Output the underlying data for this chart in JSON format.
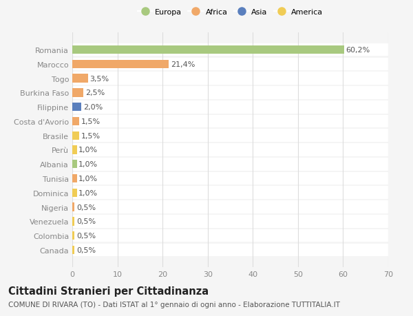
{
  "countries": [
    "Romania",
    "Marocco",
    "Togo",
    "Burkina Faso",
    "Filippine",
    "Costa d'Avorio",
    "Brasile",
    "Perù",
    "Albania",
    "Tunisia",
    "Dominica",
    "Nigeria",
    "Venezuela",
    "Colombia",
    "Canada"
  ],
  "values": [
    60.2,
    21.4,
    3.5,
    2.5,
    2.0,
    1.5,
    1.5,
    1.0,
    1.0,
    1.0,
    1.0,
    0.5,
    0.5,
    0.5,
    0.5
  ],
  "labels": [
    "60,2%",
    "21,4%",
    "3,5%",
    "2,5%",
    "2,0%",
    "1,5%",
    "1,5%",
    "1,0%",
    "1,0%",
    "1,0%",
    "1,0%",
    "0,5%",
    "0,5%",
    "0,5%",
    "0,5%"
  ],
  "continents": [
    "Europa",
    "Africa",
    "Africa",
    "Africa",
    "Asia",
    "Africa",
    "America",
    "America",
    "Europa",
    "Africa",
    "America",
    "Africa",
    "America",
    "America",
    "America"
  ],
  "continent_colors": {
    "Europa": "#a8c97f",
    "Africa": "#f0a868",
    "Asia": "#5a7fbd",
    "America": "#f0cc55"
  },
  "legend_order": [
    "Europa",
    "Africa",
    "Asia",
    "America"
  ],
  "title_bold": "Cittadini Stranieri per Cittadinanza",
  "subtitle": "COMUNE DI RIVARA (TO) - Dati ISTAT al 1° gennaio di ogni anno - Elaborazione TUTTITALIA.IT",
  "xlim": [
    0,
    70
  ],
  "xticks": [
    0,
    10,
    20,
    30,
    40,
    50,
    60,
    70
  ],
  "bg_color": "#f5f5f5",
  "bar_bg_color": "#ffffff",
  "grid_color": "#dddddd",
  "label_fontsize": 8,
  "tick_fontsize": 8,
  "title_fontsize": 10.5,
  "subtitle_fontsize": 7.5
}
